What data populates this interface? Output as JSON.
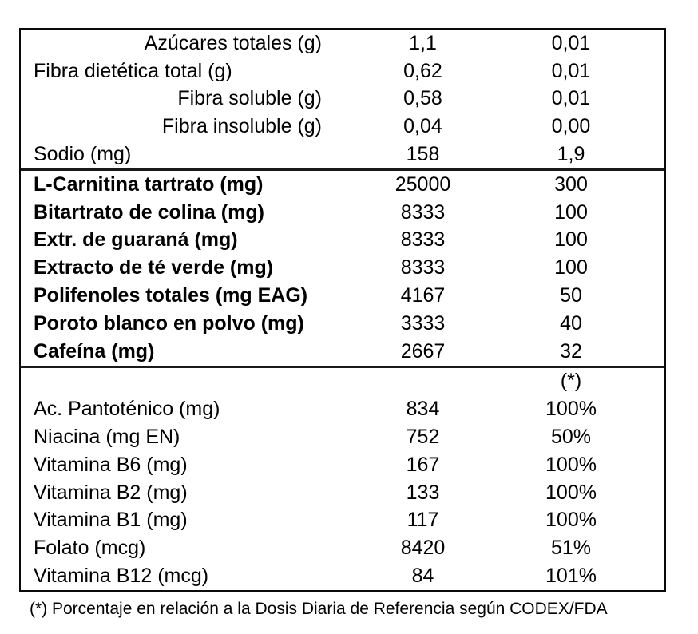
{
  "table": {
    "border_color": "#0a0a0a",
    "text_color": "#000000",
    "sections": [
      {
        "name": "basic-nutrients",
        "bold": false,
        "rows": [
          {
            "label": "Azúcares totales (g)",
            "align": "right",
            "v1": "1,1",
            "v2": "0,01"
          },
          {
            "label": "Fibra dietética total (g)",
            "align": "left",
            "v1": "0,62",
            "v2": "0,01"
          },
          {
            "label": "Fibra soluble (g)",
            "align": "right",
            "v1": "0,58",
            "v2": "0,01"
          },
          {
            "label": "Fibra insoluble (g)",
            "align": "right",
            "v1": "0,04",
            "v2": "0,00"
          },
          {
            "label": "Sodio (mg)",
            "align": "left",
            "v1": "158",
            "v2": "1,9"
          }
        ]
      },
      {
        "name": "active-ingredients",
        "bold": true,
        "rows": [
          {
            "label": "L-Carnitina tartrato (mg)",
            "align": "left",
            "v1": "25000",
            "v2": "300"
          },
          {
            "label": "Bitartrato de colina (mg)",
            "align": "left",
            "v1": "8333",
            "v2": "100"
          },
          {
            "label": "Extr. de guaraná (mg)",
            "align": "left",
            "v1": "8333",
            "v2": "100"
          },
          {
            "label": "Extracto de té verde (mg)",
            "align": "left",
            "v1": "8333",
            "v2": "100"
          },
          {
            "label": "Polifenoles totales (mg EAG)",
            "align": "left",
            "v1": "4167",
            "v2": "50"
          },
          {
            "label": "Poroto blanco en polvo (mg)",
            "align": "left",
            "v1": "3333",
            "v2": "40"
          },
          {
            "label": "Cafeína (mg)",
            "align": "left",
            "v1": "2667",
            "v2": "32"
          }
        ]
      },
      {
        "name": "vitamins",
        "bold": false,
        "rows": [
          {
            "label": "",
            "align": "left",
            "v1": "",
            "v2": "(*)"
          },
          {
            "label": "Ac. Pantoténico (mg)",
            "align": "left",
            "v1": "834",
            "v2": "100%"
          },
          {
            "label": "Niacina (mg EN)",
            "align": "left",
            "v1": "752",
            "v2": "50%"
          },
          {
            "label": "Vitamina B6 (mg)",
            "align": "left",
            "v1": "167",
            "v2": "100%"
          },
          {
            "label": "Vitamina B2 (mg)",
            "align": "left",
            "v1": "133",
            "v2": "100%"
          },
          {
            "label": "Vitamina B1 (mg)",
            "align": "left",
            "v1": "117",
            "v2": "100%"
          },
          {
            "label": "Folato (mcg)",
            "align": "left",
            "v1": "8420",
            "v2": "51%"
          },
          {
            "label": "Vitamina B12 (mcg)",
            "align": "left",
            "v1": "84",
            "v2": "101%"
          }
        ]
      }
    ],
    "footnote": "(*) Porcentaje en relación a la Dosis Diaria de Referencia según CODEX/FDA"
  }
}
